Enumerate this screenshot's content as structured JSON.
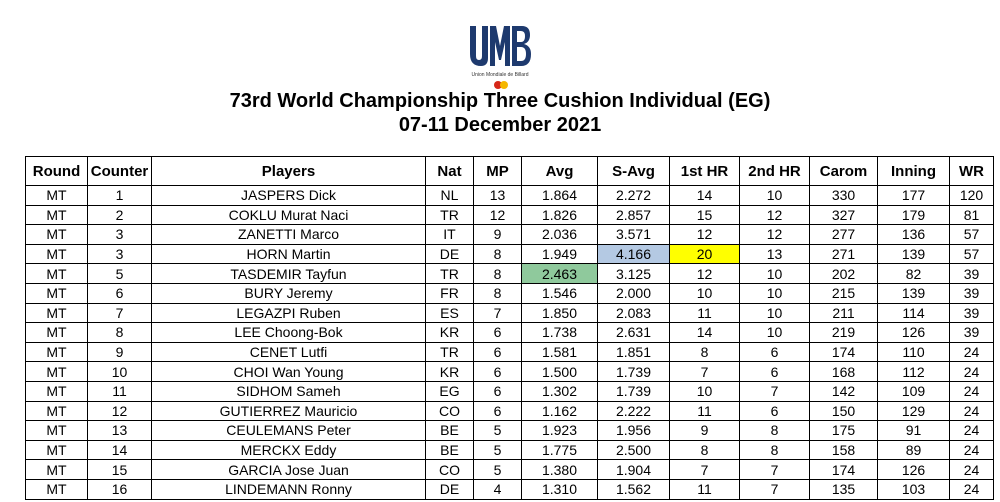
{
  "header": {
    "logo_text": "UMB",
    "logo_subtitle": "Union Mondiale de Billard",
    "title_line1": "73rd World Championship Three Cushion Individual (EG)",
    "title_line2": "07-11 December 2021",
    "brand_colors": {
      "logo_blue": "#1e3a6e",
      "dot_red": "#d62718",
      "dot_yellow": "#f5b700"
    }
  },
  "table": {
    "columns": [
      "Round",
      "Counter",
      "Players",
      "Nat",
      "MP",
      "Avg",
      "S-Avg",
      "1st HR",
      "2nd HR",
      "Carom",
      "Inning",
      "WR"
    ],
    "rows": [
      [
        "MT",
        "1",
        "JASPERS Dick",
        "NL",
        "13",
        "1.864",
        "2.272",
        "14",
        "10",
        "330",
        "177",
        "120"
      ],
      [
        "MT",
        "2",
        "COKLU Murat Naci",
        "TR",
        "12",
        "1.826",
        "2.857",
        "15",
        "12",
        "327",
        "179",
        "81"
      ],
      [
        "MT",
        "3",
        "ZANETTI Marco",
        "IT",
        "9",
        "2.036",
        "3.571",
        "12",
        "12",
        "277",
        "136",
        "57"
      ],
      [
        "MT",
        "3",
        "HORN Martin",
        "DE",
        "8",
        "1.949",
        "4.166",
        "20",
        "13",
        "271",
        "139",
        "57"
      ],
      [
        "MT",
        "5",
        "TASDEMIR Tayfun",
        "TR",
        "8",
        "2.463",
        "3.125",
        "12",
        "10",
        "202",
        "82",
        "39"
      ],
      [
        "MT",
        "6",
        "BURY Jeremy",
        "FR",
        "8",
        "1.546",
        "2.000",
        "10",
        "10",
        "215",
        "139",
        "39"
      ],
      [
        "MT",
        "7",
        "LEGAZPI Ruben",
        "ES",
        "7",
        "1.850",
        "2.083",
        "11",
        "10",
        "211",
        "114",
        "39"
      ],
      [
        "MT",
        "8",
        "LEE Choong-Bok",
        "KR",
        "6",
        "1.738",
        "2.631",
        "14",
        "10",
        "219",
        "126",
        "39"
      ],
      [
        "MT",
        "9",
        "CENET Lutfi",
        "TR",
        "6",
        "1.581",
        "1.851",
        "8",
        "6",
        "174",
        "110",
        "24"
      ],
      [
        "MT",
        "10",
        "CHOI Wan Young",
        "KR",
        "6",
        "1.500",
        "1.739",
        "7",
        "6",
        "168",
        "112",
        "24"
      ],
      [
        "MT",
        "11",
        "SIDHOM Sameh",
        "EG",
        "6",
        "1.302",
        "1.739",
        "10",
        "7",
        "142",
        "109",
        "24"
      ],
      [
        "MT",
        "12",
        "GUTIERREZ Mauricio",
        "CO",
        "6",
        "1.162",
        "2.222",
        "11",
        "6",
        "150",
        "129",
        "24"
      ],
      [
        "MT",
        "13",
        "CEULEMANS Peter",
        "BE",
        "5",
        "1.923",
        "1.956",
        "9",
        "8",
        "175",
        "91",
        "24"
      ],
      [
        "MT",
        "14",
        "MERCKX Eddy",
        "BE",
        "5",
        "1.775",
        "2.500",
        "8",
        "8",
        "158",
        "89",
        "24"
      ],
      [
        "MT",
        "15",
        "GARCIA Jose Juan",
        "CO",
        "5",
        "1.380",
        "1.904",
        "7",
        "7",
        "174",
        "126",
        "24"
      ],
      [
        "MT",
        "16",
        "LINDEMANN Ronny",
        "DE",
        "4",
        "1.310",
        "1.562",
        "11",
        "7",
        "135",
        "103",
        "24"
      ]
    ],
    "highlights": [
      {
        "row": 3,
        "col": 6,
        "style": "hl-blue",
        "color": "#b4c9e3"
      },
      {
        "row": 3,
        "col": 7,
        "style": "hl-yellow",
        "color": "#ffff00"
      },
      {
        "row": 4,
        "col": 5,
        "style": "hl-green",
        "color": "#8fc99c"
      }
    ]
  }
}
